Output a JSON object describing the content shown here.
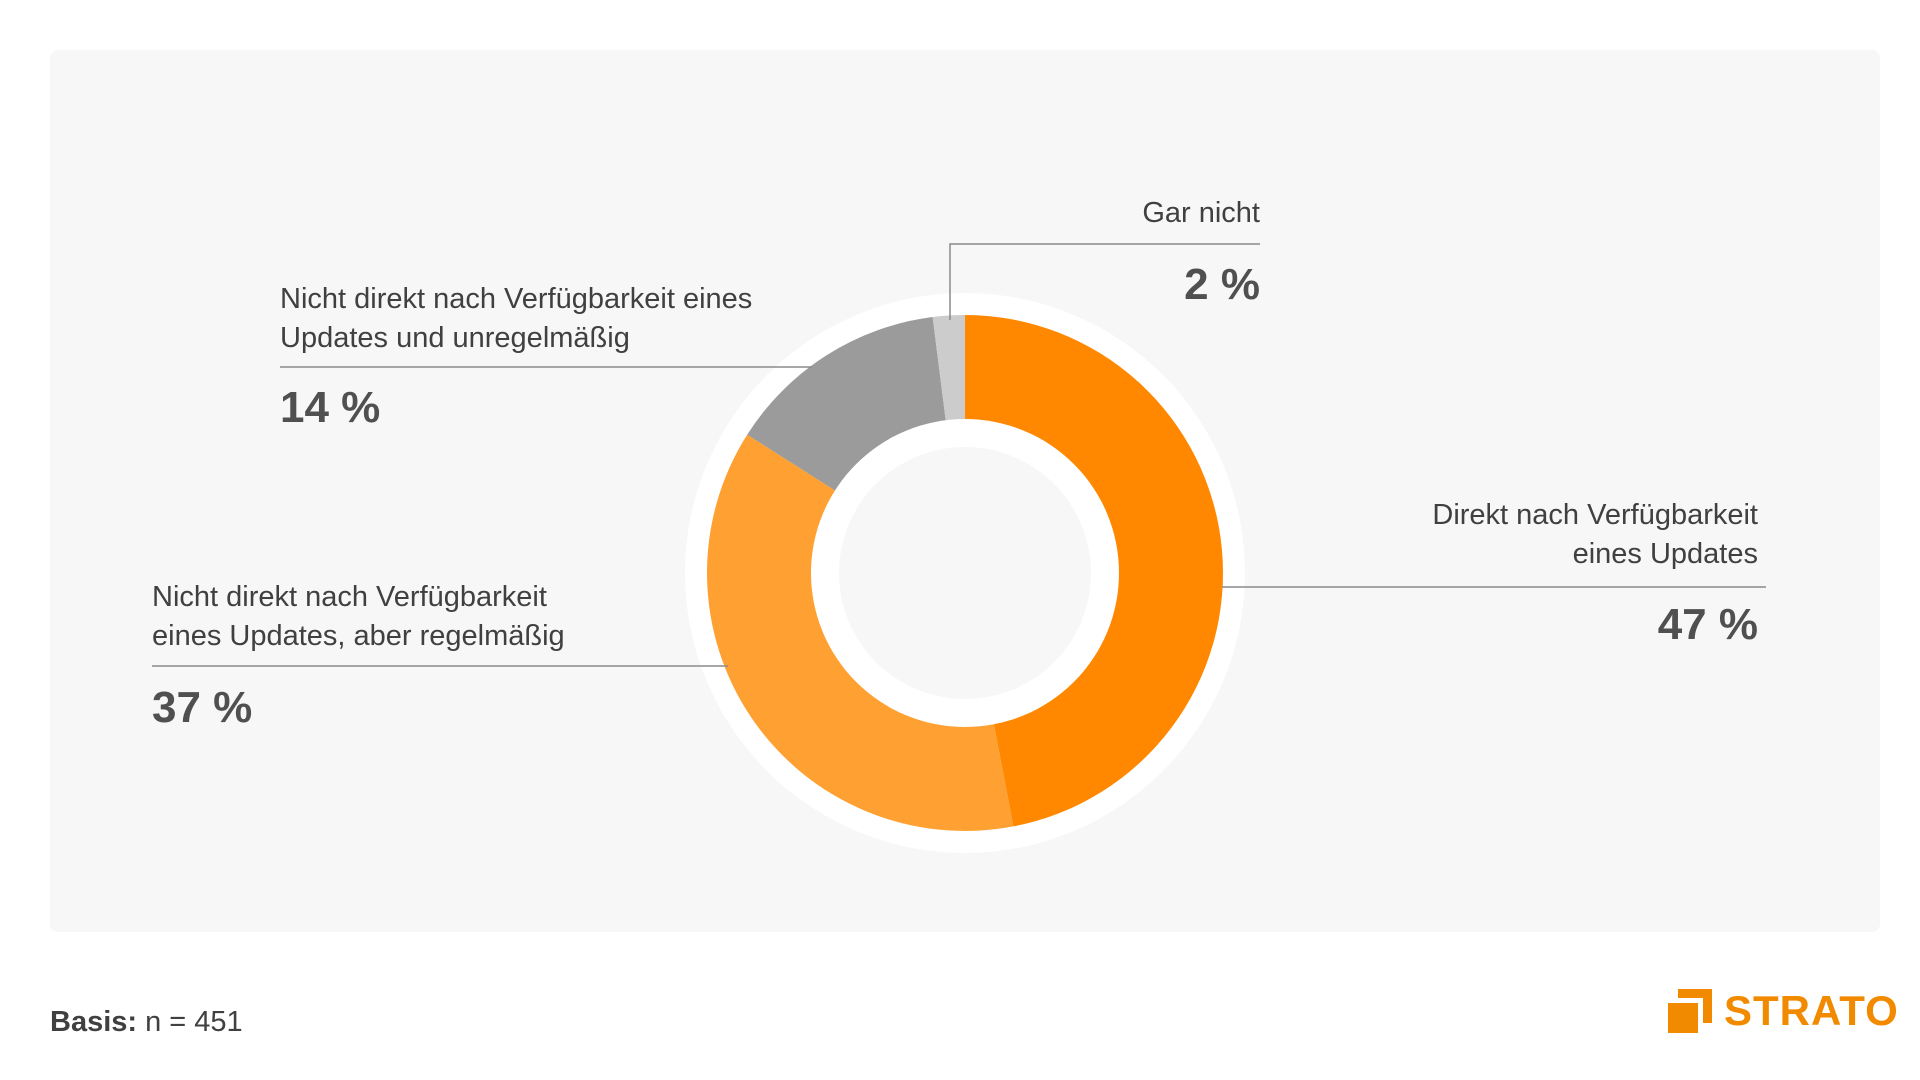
{
  "chart_data": {
    "type": "pie",
    "title": "",
    "slices": [
      {
        "label": "Direkt nach Verfügbarkeit eines Updates",
        "value": 47,
        "value_text": "47 %",
        "color": "#ff8800"
      },
      {
        "label": "Nicht direkt nach Verfügbarkeit eines Updates, aber regelmäßig",
        "value": 37,
        "value_text": "37 %",
        "color": "#ffa033"
      },
      {
        "label": "Nicht direkt nach Verfügbarkeit eines Updates und unregelmäßig",
        "value": 14,
        "value_text": "14 %",
        "color": "#9b9b9b"
      },
      {
        "label": "Gar nicht",
        "value": 2,
        "value_text": "2 %",
        "color": "#cccccc"
      }
    ],
    "donut": true,
    "legend": "none"
  },
  "labels": {
    "direkt": {
      "line1": "Direkt nach Verfügbarkeit",
      "line2": "eines Updates",
      "value": "47 %"
    },
    "regelmaessig": {
      "line1": "Nicht direkt nach Verfügbarkeit",
      "line2": "eines Updates, aber regelmäßig",
      "value": "37 %"
    },
    "unregelmaessig": {
      "line1": "Nicht direkt nach Verfügbarkeit eines",
      "line2": "Updates und unregelmäßig",
      "value": "14 %"
    },
    "gar_nicht": {
      "line1": "Gar nicht",
      "value": "2 %"
    }
  },
  "footer": {
    "basis_label": "Basis:",
    "basis_value": "n = 451",
    "logo_text": "STRATO"
  }
}
